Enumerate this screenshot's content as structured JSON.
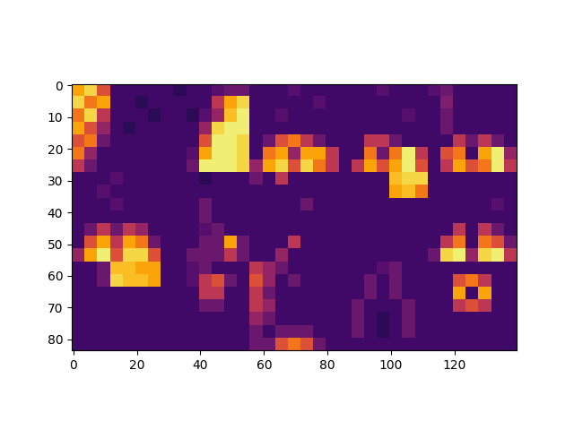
{
  "chart_data": {
    "type": "heatmap",
    "xlim": [
      -0.5,
      139.5
    ],
    "ylim": [
      83.5,
      -0.5
    ],
    "xticks": [
      0,
      20,
      40,
      60,
      80,
      100,
      120
    ],
    "yticks": [
      0,
      10,
      20,
      30,
      40,
      50,
      60,
      70,
      80
    ],
    "clim": [
      0,
      1
    ],
    "grid": false,
    "cells": [
      [
        0.8,
        0.9,
        0.6,
        0.2,
        0.2,
        0.2,
        0.2,
        0.2,
        0.15,
        0.2,
        0.2,
        0.25,
        0.3,
        0.3,
        0.2,
        0.2,
        0.2,
        0.25,
        0.2,
        0.2,
        0.2,
        0.2,
        0.2,
        0.2,
        0.25,
        0.2,
        0.2,
        0.2,
        0.25,
        0.3,
        0.2,
        0.2,
        0.2,
        0.2,
        0.2
      ],
      [
        0.9,
        0.7,
        0.8,
        0.2,
        0.2,
        0.15,
        0.2,
        0.2,
        0.2,
        0.2,
        0.2,
        0.5,
        0.8,
        0.9,
        0.2,
        0.2,
        0.2,
        0.2,
        0.2,
        0.25,
        0.2,
        0.2,
        0.2,
        0.2,
        0.2,
        0.2,
        0.2,
        0.2,
        0.2,
        0.35,
        0.2,
        0.2,
        0.2,
        0.2,
        0.2
      ],
      [
        0.7,
        0.9,
        0.5,
        0.2,
        0.2,
        0.2,
        0.15,
        0.2,
        0.2,
        0.15,
        0.25,
        0.4,
        0.85,
        0.95,
        0.2,
        0.2,
        0.25,
        0.2,
        0.2,
        0.2,
        0.2,
        0.2,
        0.2,
        0.2,
        0.2,
        0.2,
        0.25,
        0.2,
        0.2,
        0.3,
        0.2,
        0.2,
        0.2,
        0.2,
        0.2
      ],
      [
        0.8,
        0.6,
        0.4,
        0.2,
        0.15,
        0.2,
        0.2,
        0.2,
        0.2,
        0.2,
        0.4,
        0.9,
        0.95,
        0.95,
        0.2,
        0.2,
        0.2,
        0.2,
        0.2,
        0.2,
        0.2,
        0.2,
        0.2,
        0.2,
        0.2,
        0.2,
        0.2,
        0.2,
        0.2,
        0.3,
        0.2,
        0.2,
        0.2,
        0.2,
        0.2
      ],
      [
        0.6,
        0.7,
        0.3,
        0.2,
        0.2,
        0.2,
        0.2,
        0.2,
        0.2,
        0.2,
        0.6,
        0.95,
        0.95,
        0.9,
        0.2,
        0.3,
        0.6,
        0.7,
        0.5,
        0.3,
        0.2,
        0.2,
        0.2,
        0.5,
        0.5,
        0.3,
        0.2,
        0.2,
        0.2,
        0.2,
        0.5,
        0.3,
        0.5,
        0.3,
        0.2
      ],
      [
        0.7,
        0.4,
        0.2,
        0.2,
        0.2,
        0.2,
        0.2,
        0.2,
        0.2,
        0.25,
        0.8,
        0.95,
        0.95,
        0.9,
        0.2,
        0.7,
        0.8,
        0.4,
        0.8,
        0.8,
        0.5,
        0.2,
        0.2,
        0.7,
        0.3,
        0.7,
        0.95,
        0.5,
        0.2,
        0.6,
        0.7,
        0.2,
        0.8,
        0.95,
        0.4
      ],
      [
        0.5,
        0.3,
        0.2,
        0.2,
        0.2,
        0.2,
        0.2,
        0.2,
        0.2,
        0.3,
        0.95,
        0.95,
        0.95,
        0.9,
        0.4,
        0.8,
        0.9,
        0.6,
        0.9,
        0.7,
        0.5,
        0.2,
        0.5,
        0.8,
        0.6,
        0.8,
        0.95,
        0.6,
        0.2,
        0.5,
        0.8,
        0.6,
        0.7,
        0.95,
        0.5
      ],
      [
        0.2,
        0.2,
        0.2,
        0.25,
        0.2,
        0.2,
        0.2,
        0.2,
        0.2,
        0.2,
        0.15,
        0.2,
        0.2,
        0.2,
        0.3,
        0.2,
        0.5,
        0.2,
        0.2,
        0.2,
        0.2,
        0.2,
        0.2,
        0.2,
        0.2,
        0.85,
        0.9,
        0.9,
        0.2,
        0.2,
        0.2,
        0.2,
        0.2,
        0.2,
        0.2
      ],
      [
        0.2,
        0.2,
        0.25,
        0.2,
        0.2,
        0.2,
        0.2,
        0.2,
        0.2,
        0.2,
        0.2,
        0.2,
        0.2,
        0.2,
        0.2,
        0.2,
        0.2,
        0.2,
        0.2,
        0.2,
        0.2,
        0.2,
        0.2,
        0.2,
        0.2,
        0.8,
        0.85,
        0.7,
        0.2,
        0.2,
        0.2,
        0.2,
        0.2,
        0.2,
        0.2
      ],
      [
        0.2,
        0.2,
        0.2,
        0.25,
        0.2,
        0.2,
        0.2,
        0.2,
        0.2,
        0.2,
        0.3,
        0.2,
        0.2,
        0.2,
        0.2,
        0.2,
        0.2,
        0.2,
        0.3,
        0.2,
        0.2,
        0.2,
        0.2,
        0.2,
        0.2,
        0.2,
        0.2,
        0.2,
        0.2,
        0.2,
        0.2,
        0.2,
        0.2,
        0.25,
        0.2
      ],
      [
        0.2,
        0.2,
        0.2,
        0.2,
        0.2,
        0.2,
        0.2,
        0.2,
        0.2,
        0.2,
        0.3,
        0.2,
        0.2,
        0.2,
        0.2,
        0.2,
        0.2,
        0.2,
        0.2,
        0.2,
        0.2,
        0.2,
        0.2,
        0.2,
        0.2,
        0.2,
        0.2,
        0.2,
        0.2,
        0.2,
        0.2,
        0.2,
        0.2,
        0.2,
        0.2
      ],
      [
        0.2,
        0.3,
        0.5,
        0.3,
        0.5,
        0.4,
        0.2,
        0.2,
        0.2,
        0.2,
        0.25,
        0.3,
        0.2,
        0.2,
        0.2,
        0.2,
        0.2,
        0.2,
        0.2,
        0.2,
        0.2,
        0.2,
        0.2,
        0.2,
        0.2,
        0.2,
        0.2,
        0.2,
        0.2,
        0.2,
        0.5,
        0.2,
        0.5,
        0.3,
        0.2
      ],
      [
        0.2,
        0.6,
        0.8,
        0.5,
        0.8,
        0.7,
        0.3,
        0.2,
        0.2,
        0.2,
        0.3,
        0.3,
        0.8,
        0.3,
        0.2,
        0.2,
        0.2,
        0.5,
        0.2,
        0.2,
        0.2,
        0.2,
        0.2,
        0.2,
        0.2,
        0.2,
        0.2,
        0.2,
        0.2,
        0.5,
        0.7,
        0.2,
        0.7,
        0.6,
        0.3
      ],
      [
        0.4,
        0.8,
        0.95,
        0.6,
        0.9,
        0.9,
        0.6,
        0.2,
        0.2,
        0.3,
        0.3,
        0.3,
        0.5,
        0.3,
        0.2,
        0.2,
        0.4,
        0.2,
        0.2,
        0.2,
        0.2,
        0.2,
        0.2,
        0.2,
        0.2,
        0.2,
        0.2,
        0.2,
        0.3,
        0.9,
        0.95,
        0.4,
        0.9,
        0.95,
        0.5
      ],
      [
        0.2,
        0.2,
        0.3,
        0.85,
        0.85,
        0.8,
        0.8,
        0.2,
        0.2,
        0.25,
        0.3,
        0.2,
        0.2,
        0.2,
        0.5,
        0.4,
        0.3,
        0.2,
        0.2,
        0.2,
        0.2,
        0.2,
        0.2,
        0.2,
        0.25,
        0.3,
        0.2,
        0.2,
        0.2,
        0.2,
        0.2,
        0.2,
        0.2,
        0.2,
        0.2
      ],
      [
        0.2,
        0.2,
        0.3,
        0.9,
        0.85,
        0.85,
        0.8,
        0.2,
        0.2,
        0.25,
        0.5,
        0.6,
        0.3,
        0.2,
        0.6,
        0.4,
        0.2,
        0.3,
        0.2,
        0.2,
        0.2,
        0.2,
        0.2,
        0.3,
        0.2,
        0.3,
        0.2,
        0.2,
        0.2,
        0.2,
        0.6,
        0.7,
        0.5,
        0.2,
        0.2
      ],
      [
        0.2,
        0.2,
        0.2,
        0.2,
        0.2,
        0.2,
        0.2,
        0.2,
        0.2,
        0.2,
        0.5,
        0.5,
        0.2,
        0.2,
        0.5,
        0.3,
        0.2,
        0.2,
        0.2,
        0.2,
        0.2,
        0.2,
        0.2,
        0.3,
        0.2,
        0.3,
        0.2,
        0.2,
        0.2,
        0.2,
        0.8,
        0.2,
        0.8,
        0.2,
        0.2
      ],
      [
        0.2,
        0.2,
        0.2,
        0.2,
        0.2,
        0.2,
        0.2,
        0.2,
        0.2,
        0.2,
        0.3,
        0.3,
        0.2,
        0.2,
        0.5,
        0.4,
        0.2,
        0.2,
        0.2,
        0.2,
        0.2,
        0.2,
        0.3,
        0.2,
        0.2,
        0.2,
        0.3,
        0.2,
        0.2,
        0.2,
        0.5,
        0.6,
        0.5,
        0.2,
        0.2
      ],
      [
        0.2,
        0.2,
        0.2,
        0.2,
        0.2,
        0.2,
        0.2,
        0.2,
        0.2,
        0.2,
        0.2,
        0.2,
        0.2,
        0.2,
        0.4,
        0.3,
        0.2,
        0.2,
        0.2,
        0.2,
        0.2,
        0.2,
        0.3,
        0.2,
        0.15,
        0.2,
        0.3,
        0.2,
        0.2,
        0.2,
        0.2,
        0.2,
        0.2,
        0.2,
        0.2
      ],
      [
        0.2,
        0.2,
        0.2,
        0.2,
        0.2,
        0.2,
        0.2,
        0.2,
        0.2,
        0.2,
        0.2,
        0.2,
        0.2,
        0.2,
        0.3,
        0.2,
        0.3,
        0.3,
        0.3,
        0.2,
        0.2,
        0.2,
        0.3,
        0.2,
        0.15,
        0.2,
        0.3,
        0.2,
        0.2,
        0.2,
        0.2,
        0.2,
        0.2,
        0.2,
        0.2
      ],
      [
        0.2,
        0.2,
        0.2,
        0.2,
        0.2,
        0.2,
        0.2,
        0.2,
        0.2,
        0.2,
        0.2,
        0.2,
        0.2,
        0.2,
        0.3,
        0.3,
        0.6,
        0.7,
        0.6,
        0.3,
        0.2,
        0.2,
        0.2,
        0.2,
        0.2,
        0.2,
        0.2,
        0.2,
        0.2,
        0.2,
        0.2,
        0.2,
        0.2,
        0.2,
        0.2
      ]
    ]
  }
}
